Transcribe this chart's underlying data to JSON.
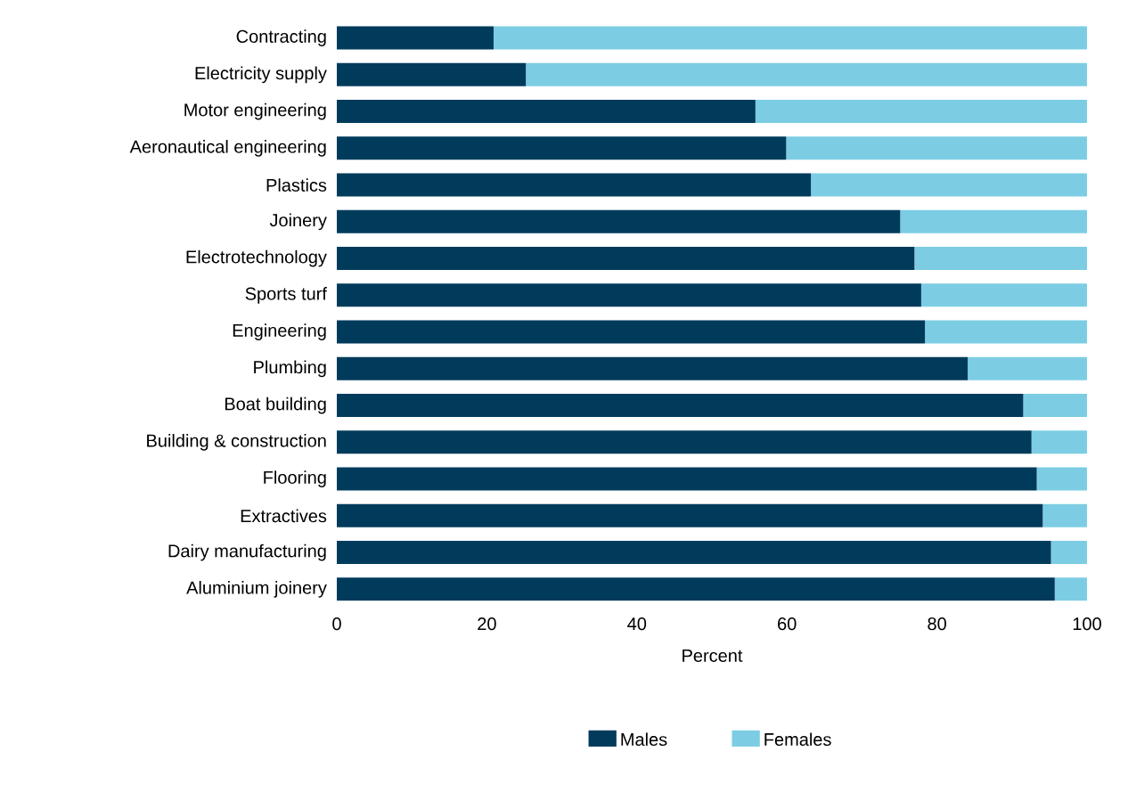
{
  "chart_data": {
    "type": "bar",
    "orientation": "horizontal",
    "stacked": true,
    "xlabel": "Percent",
    "categories": [
      "Contracting",
      "Electricity supply",
      "Motor engineering",
      "Aeronautical engineering",
      "Plastics",
      "Joinery",
      "Electrotechnology",
      "Sports turf",
      "Engineering",
      "Plumbing",
      "Boat building",
      "Building & construction",
      "Flooring",
      "Extractives",
      "Dairy manufacturing",
      "Aluminium joinery"
    ],
    "series": [
      {
        "name": "Males",
        "color": "#003b5c",
        "values": [
          20.9,
          25.2,
          55.8,
          59.9,
          63.2,
          75.1,
          77.0,
          77.9,
          78.4,
          84.1,
          91.5,
          92.6,
          93.3,
          94.1,
          95.2,
          95.7
        ]
      },
      {
        "name": "Females",
        "color": "#7ccde3",
        "values": [
          79.1,
          74.8,
          44.2,
          40.1,
          36.8,
          24.9,
          23.0,
          22.1,
          21.6,
          15.9,
          8.5,
          7.4,
          6.7,
          5.9,
          4.8,
          4.3
        ]
      }
    ],
    "xlim": [
      0,
      100
    ],
    "xticks": [
      0,
      20,
      40,
      60,
      80,
      100
    ],
    "grid": false,
    "legend": "bottom"
  }
}
